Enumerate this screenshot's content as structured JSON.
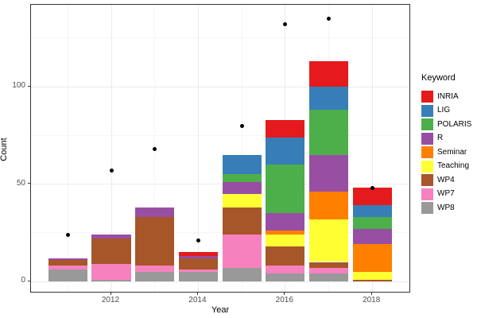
{
  "chart": {
    "y_axis": {
      "title": "Count",
      "ticks": [
        {
          "label": "0",
          "value": 0
        },
        {
          "label": "50",
          "value": 50
        },
        {
          "label": "100",
          "value": 100
        }
      ],
      "minor_gridlines": [
        25,
        75,
        125
      ]
    },
    "x_axis": {
      "title": "Year",
      "ticks": [
        {
          "label": "2012",
          "value": 2012
        },
        {
          "label": "2014",
          "value": 2014
        },
        {
          "label": "2016",
          "value": 2016
        },
        {
          "label": "2018",
          "value": 2018
        }
      ],
      "minor_gridline_years": [
        2011,
        2013,
        2015,
        2017
      ]
    },
    "style": {
      "panel_border": "#333333",
      "grid_major": "#ebebeb",
      "grid_minor": "#f5f5f5",
      "tick_text": "#4d4d4d",
      "point_color": "#000000"
    }
  },
  "chart_data": {
    "type": "bar",
    "stacked": true,
    "title": "",
    "xlabel": "Year",
    "ylabel": "Count",
    "legend_title": "Keyword",
    "legend_position": "right",
    "grid": true,
    "ylim": [
      0,
      142
    ],
    "categories": [
      2011,
      2012,
      2013,
      2014,
      2015,
      2016,
      2017,
      2018
    ],
    "series": [
      {
        "name": "INRIA",
        "color": "#E41A1C",
        "values": [
          0,
          0,
          0,
          2,
          0,
          9,
          13,
          9
        ]
      },
      {
        "name": "LIG",
        "color": "#377EB8",
        "values": [
          0,
          0,
          0,
          0,
          10,
          14,
          12,
          6
        ]
      },
      {
        "name": "POLARIS",
        "color": "#4DAF4A",
        "values": [
          0,
          0,
          0,
          0,
          4,
          25,
          23,
          6
        ]
      },
      {
        "name": "R",
        "color": "#984EA3",
        "values": [
          1,
          2,
          5,
          1,
          6,
          9,
          19,
          8
        ]
      },
      {
        "name": "Seminar",
        "color": "#FF7F00",
        "values": [
          0,
          0,
          0,
          0,
          0,
          2,
          14,
          14
        ]
      },
      {
        "name": "Teaching",
        "color": "#FFFF33",
        "values": [
          0,
          0,
          0,
          0,
          7,
          6,
          22,
          4
        ]
      },
      {
        "name": "WP4",
        "color": "#A65628",
        "values": [
          3,
          13,
          25,
          6,
          14,
          10,
          3,
          1
        ]
      },
      {
        "name": "WP7",
        "color": "#F781BF",
        "values": [
          2,
          8,
          3,
          1,
          17,
          4,
          3,
          0
        ]
      },
      {
        "name": "WP8",
        "color": "#999999",
        "values": [
          6,
          1,
          5,
          5,
          7,
          4,
          4,
          0
        ]
      }
    ],
    "stack_order_bottom_to_top": [
      "WP8",
      "WP7",
      "WP4",
      "Teaching",
      "Seminar",
      "R",
      "POLARIS",
      "LIG",
      "INRIA"
    ],
    "bar_totals": [
      12,
      24,
      38,
      15,
      65,
      83,
      113,
      48
    ],
    "points_series": {
      "name": "scatter-dots",
      "shape": "circle",
      "color": "#000000",
      "values": [
        24,
        57,
        68,
        21,
        80,
        132,
        135,
        48
      ]
    }
  }
}
